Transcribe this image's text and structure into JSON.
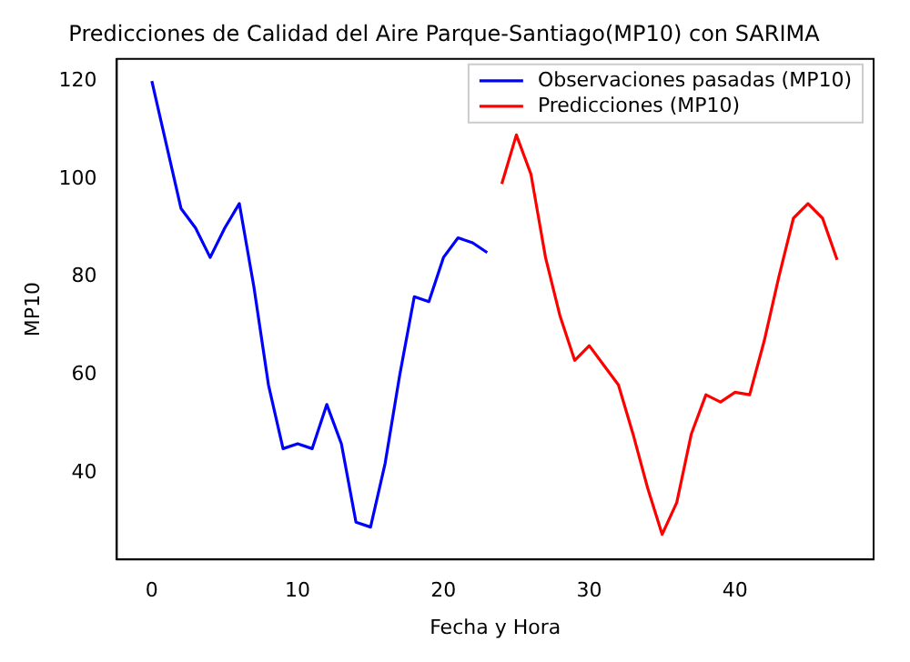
{
  "chart_data": {
    "type": "line",
    "title": "Predicciones de Calidad del Aire Parque-Santiago(MP10) con SARIMA",
    "xlabel": "Fecha y Hora",
    "ylabel": "MP10",
    "series": [
      {
        "name": "Observaciones pasadas (MP10)",
        "color": "#0000ff",
        "x": [
          0,
          1,
          2,
          3,
          4,
          5,
          6,
          7,
          8,
          9,
          10,
          11,
          12,
          13,
          14,
          15,
          16,
          17,
          18,
          19,
          20,
          21,
          22,
          23
        ],
        "values": [
          120,
          107,
          94,
          90,
          84,
          90,
          95,
          78,
          58,
          45,
          46,
          45,
          54,
          46,
          30,
          29,
          42,
          60,
          76,
          75,
          84,
          88,
          87,
          85
        ]
      },
      {
        "name": "Predicciones (MP10)",
        "color": "#ff0000",
        "x": [
          24,
          25,
          26,
          27,
          28,
          29,
          30,
          31,
          32,
          33,
          34,
          35,
          36,
          37,
          38,
          39,
          40,
          41,
          42,
          43,
          44,
          45,
          46,
          47
        ],
        "values": [
          99,
          109,
          101,
          84,
          72,
          63,
          66,
          62,
          58,
          48,
          37,
          27.5,
          34,
          48,
          56,
          54.5,
          56.5,
          56,
          67,
          80,
          92,
          95,
          92,
          83.5
        ]
      }
    ],
    "xlim": [
      -2.4,
      49.5
    ],
    "ylim": [
      22.4,
      124.5
    ],
    "xticks": [
      0,
      10,
      20,
      30,
      40
    ],
    "yticks": [
      40,
      60,
      80,
      100,
      120
    ],
    "legend": "top right",
    "grid": false,
    "marker": "none",
    "line_style": "solid"
  }
}
